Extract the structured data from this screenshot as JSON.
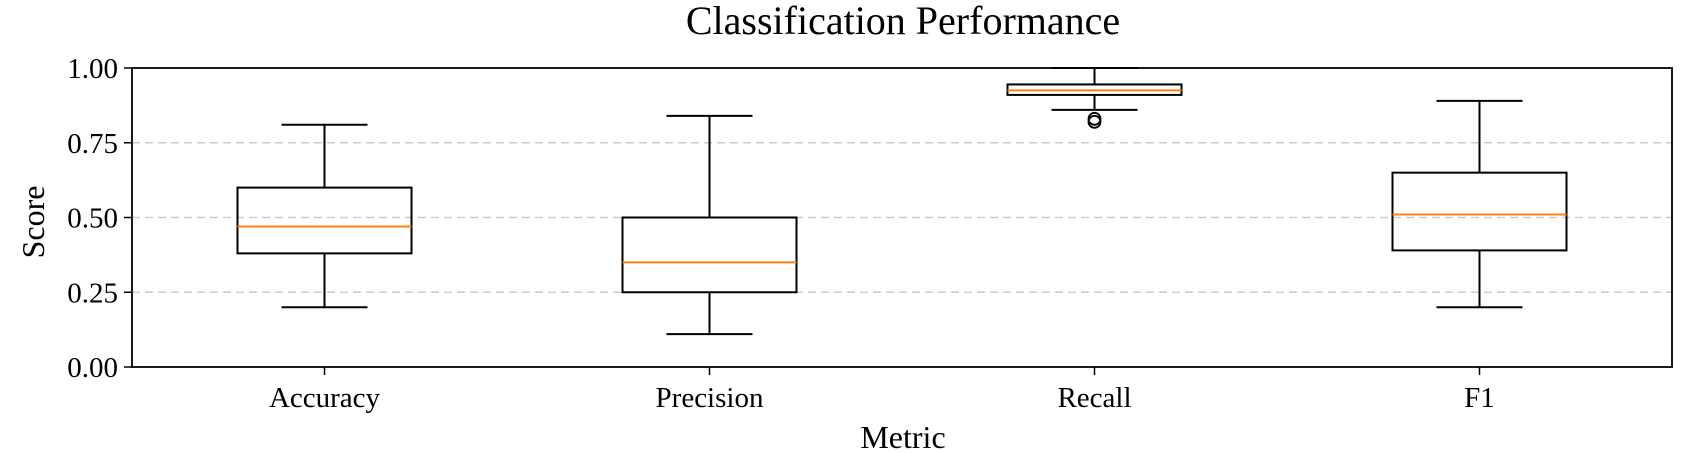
{
  "chart_data": {
    "type": "box",
    "title": "Classification Performance",
    "xlabel": "Metric",
    "ylabel": "Score",
    "ylim": [
      0,
      1
    ],
    "yticks": [
      0.0,
      0.25,
      0.5,
      0.75,
      1.0
    ],
    "ytick_labels": [
      "0.00",
      "0.25",
      "0.50",
      "0.75",
      "1.00"
    ],
    "grid": "horizontal-dashed",
    "categories": [
      "Accuracy",
      "Precision",
      "Recall",
      "F1"
    ],
    "boxes": [
      {
        "label": "Accuracy",
        "whisker_low": 0.2,
        "q1": 0.38,
        "median": 0.47,
        "q3": 0.6,
        "whisker_high": 0.81,
        "outliers": []
      },
      {
        "label": "Precision",
        "whisker_low": 0.11,
        "q1": 0.25,
        "median": 0.35,
        "q3": 0.5,
        "whisker_high": 0.84,
        "outliers": []
      },
      {
        "label": "Recall",
        "whisker_low": 0.86,
        "q1": 0.91,
        "median": 0.925,
        "q3": 0.945,
        "whisker_high": 1.0,
        "outliers": [
          0.82,
          0.83
        ]
      },
      {
        "label": "F1",
        "whisker_low": 0.2,
        "q1": 0.39,
        "median": 0.51,
        "q3": 0.65,
        "whisker_high": 0.89,
        "outliers": []
      }
    ],
    "colors": {
      "box": "#000000",
      "median": "#ff7f0e",
      "grid": "#cccccc"
    }
  }
}
